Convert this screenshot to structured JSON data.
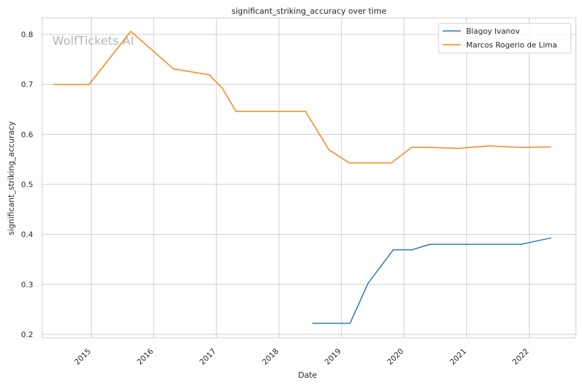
{
  "chart_data": {
    "type": "line",
    "title": "significant_striking_accuracy over time",
    "xlabel": "Date",
    "ylabel": "significant_striking_accuracy",
    "watermark": "WolfTickets.AI",
    "xlim": [
      "2014-03-20",
      "2022-09-30"
    ],
    "ylim": [
      0.193,
      0.833
    ],
    "x_ticks": [
      "2015",
      "2016",
      "2017",
      "2018",
      "2019",
      "2020",
      "2021",
      "2022"
    ],
    "x_tick_dates": [
      "2015-01-01",
      "2016-01-01",
      "2017-01-01",
      "2018-01-01",
      "2019-01-01",
      "2020-01-01",
      "2021-01-01",
      "2022-01-01"
    ],
    "y_ticks": [
      0.2,
      0.3,
      0.4,
      0.5,
      0.6,
      0.7,
      0.8
    ],
    "grid": true,
    "legend_position": "top-right",
    "series": [
      {
        "name": "Blagoy Ivanov",
        "color": "#1f77b4",
        "points": [
          {
            "x": "2018-07-15",
            "y": 0.222
          },
          {
            "x": "2019-02-20",
            "y": 0.222
          },
          {
            "x": "2019-06-05",
            "y": 0.302
          },
          {
            "x": "2019-10-30",
            "y": 0.369
          },
          {
            "x": "2020-02-15",
            "y": 0.369
          },
          {
            "x": "2020-06-01",
            "y": 0.38
          },
          {
            "x": "2021-11-15",
            "y": 0.38
          },
          {
            "x": "2022-05-10",
            "y": 0.393
          }
        ]
      },
      {
        "name": "Marcos Rogerio de Lima",
        "color": "#ff7f0e",
        "points": [
          {
            "x": "2014-05-27",
            "y": 0.7
          },
          {
            "x": "2014-12-20",
            "y": 0.7
          },
          {
            "x": "2015-08-20",
            "y": 0.806
          },
          {
            "x": "2016-04-25",
            "y": 0.731
          },
          {
            "x": "2016-11-20",
            "y": 0.719
          },
          {
            "x": "2017-02-05",
            "y": 0.692
          },
          {
            "x": "2017-04-25",
            "y": 0.646
          },
          {
            "x": "2018-06-05",
            "y": 0.646
          },
          {
            "x": "2018-10-20",
            "y": 0.569
          },
          {
            "x": "2019-02-15",
            "y": 0.543
          },
          {
            "x": "2019-10-20",
            "y": 0.543
          },
          {
            "x": "2020-02-15",
            "y": 0.574
          },
          {
            "x": "2020-06-01",
            "y": 0.574
          },
          {
            "x": "2020-11-15",
            "y": 0.572
          },
          {
            "x": "2021-05-10",
            "y": 0.577
          },
          {
            "x": "2021-11-15",
            "y": 0.574
          },
          {
            "x": "2022-05-10",
            "y": 0.575
          }
        ]
      }
    ]
  }
}
